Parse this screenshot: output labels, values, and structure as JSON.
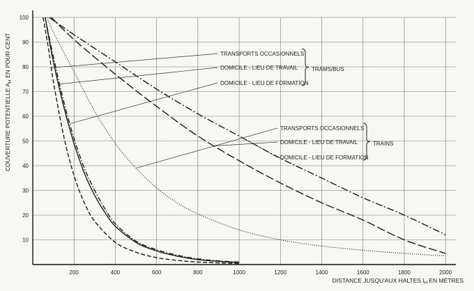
{
  "chart_data": {
    "type": "line",
    "title": "",
    "xlabel": "DISTANCE JUSQU'AUX HALTES l",
    "xlabel_sub": "H",
    "xlabel_suffix": " EN MÈTRES",
    "ylabel": "COUVERTURE POTENTIELLE A",
    "ylabel_sub": "H",
    "ylabel_suffix": " EN POUR-CENT",
    "xlim": [
      0,
      2050
    ],
    "ylim": [
      0,
      100
    ],
    "x_ticks": [
      200,
      400,
      600,
      800,
      1000,
      1200,
      1400,
      1600,
      1800,
      2000
    ],
    "y_ticks": [
      10,
      20,
      30,
      40,
      50,
      60,
      70,
      80,
      90,
      100
    ],
    "grid": true,
    "groups": [
      {
        "name": "TRAMS/BUS",
        "labels": [
          "TRANSPORTS OCCASIONNELS",
          "DOMICILE - LIEU DE TRAVAIL",
          "DOMICILE - LIEU DE FORMATION"
        ]
      },
      {
        "name": "TRAINS",
        "labels": [
          "TRANSPORTS OCCASIONNELS",
          "DOMICILE - LIEU DE TRAVAIL",
          "DOMICILE - LIEU DE FORMATION"
        ]
      }
    ],
    "series": [
      {
        "group": "TRAMS/BUS",
        "label": "TRANSPORTS OCCASIONNELS",
        "style": "dash",
        "points": [
          [
            50,
            100
          ],
          [
            75,
            88
          ],
          [
            100,
            74
          ],
          [
            150,
            52
          ],
          [
            200,
            36
          ],
          [
            250,
            25
          ],
          [
            300,
            17.5
          ],
          [
            400,
            9
          ],
          [
            500,
            5
          ],
          [
            600,
            2.8
          ],
          [
            700,
            1.7
          ],
          [
            800,
            1
          ],
          [
            1000,
            0.4
          ]
        ]
      },
      {
        "group": "TRAMS/BUS",
        "label": "DOMICILE - LIEU DE TRAVAIL",
        "style": "solid",
        "points": [
          [
            60,
            100
          ],
          [
            100,
            82
          ],
          [
            150,
            64
          ],
          [
            200,
            49
          ],
          [
            250,
            37
          ],
          [
            300,
            28
          ],
          [
            350,
            21
          ],
          [
            400,
            15.5
          ],
          [
            500,
            9
          ],
          [
            600,
            5.5
          ],
          [
            700,
            3.4
          ],
          [
            800,
            2
          ],
          [
            900,
            1.3
          ],
          [
            1000,
            0.8
          ]
        ]
      },
      {
        "group": "TRAMS/BUS",
        "label": "DOMICILE - LIEU DE FORMATION",
        "style": "dashdot",
        "points": [
          [
            60,
            100
          ],
          [
            100,
            84
          ],
          [
            150,
            66
          ],
          [
            200,
            51
          ],
          [
            250,
            39
          ],
          [
            300,
            30
          ],
          [
            350,
            22.5
          ],
          [
            400,
            16.5
          ],
          [
            500,
            9.5
          ],
          [
            600,
            6
          ],
          [
            700,
            3.8
          ],
          [
            800,
            2.3
          ],
          [
            900,
            1.5
          ],
          [
            1000,
            1
          ]
        ]
      },
      {
        "group": "TRAINS",
        "label": "TRANSPORTS OCCASIONNELS",
        "style": "dot",
        "points": [
          [
            70,
            100
          ],
          [
            100,
            94
          ],
          [
            200,
            78
          ],
          [
            300,
            62
          ],
          [
            400,
            49
          ],
          [
            500,
            39
          ],
          [
            600,
            31
          ],
          [
            700,
            25
          ],
          [
            800,
            20.5
          ],
          [
            1000,
            14
          ],
          [
            1200,
            10
          ],
          [
            1400,
            7.5
          ],
          [
            1600,
            5.8
          ],
          [
            1800,
            4.5
          ],
          [
            2000,
            3.5
          ]
        ]
      },
      {
        "group": "TRAINS",
        "label": "DOMICILE - LIEU DE TRAVAIL",
        "style": "longdash",
        "points": [
          [
            90,
            100
          ],
          [
            200,
            91
          ],
          [
            400,
            77
          ],
          [
            600,
            64
          ],
          [
            800,
            52
          ],
          [
            1000,
            42
          ],
          [
            1200,
            33
          ],
          [
            1400,
            25
          ],
          [
            1600,
            18
          ],
          [
            1800,
            10
          ],
          [
            2000,
            4.5
          ]
        ]
      },
      {
        "group": "TRAINS",
        "label": "DOMICILE - LIEU DE FORMATION",
        "style": "longdashdot",
        "points": [
          [
            80,
            100
          ],
          [
            200,
            93
          ],
          [
            400,
            82
          ],
          [
            600,
            71
          ],
          [
            800,
            61
          ],
          [
            1000,
            52
          ],
          [
            1200,
            43
          ],
          [
            1400,
            35
          ],
          [
            1600,
            27
          ],
          [
            1800,
            20
          ],
          [
            2000,
            12
          ]
        ]
      }
    ]
  }
}
